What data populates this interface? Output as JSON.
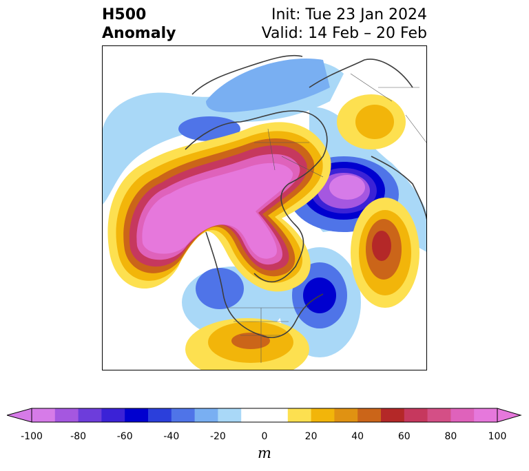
{
  "header": {
    "title_line1": "H500",
    "title_line2": "Anomaly",
    "init_text": "Init: Tue 23 Jan 2024",
    "valid_text": "Valid: 14 Feb – 20 Feb"
  },
  "colorbar": {
    "unit": "m",
    "tick_labels": [
      "-100",
      "-80",
      "-60",
      "-40",
      "-20",
      "0",
      "20",
      "40",
      "60",
      "80",
      "100"
    ],
    "range": [
      -100,
      100
    ],
    "colors": [
      "#d67be8",
      "#a557e0",
      "#6d3ddb",
      "#3b22d6",
      "#0000cf",
      "#2b3fdb",
      "#4f74e8",
      "#79aff2",
      "#a9d8f7",
      "#ffffff",
      "#ffffff",
      "#fde050",
      "#f2b50a",
      "#e09212",
      "#cb6519",
      "#b42828",
      "#c6385e",
      "#d44f86",
      "#df62bb",
      "#e678dc"
    ]
  }
}
